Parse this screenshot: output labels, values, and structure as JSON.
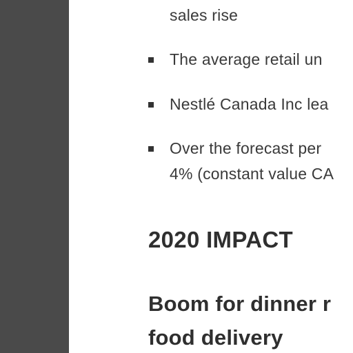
{
  "article": {
    "bullets": [
      {
        "lines": [
          "sales rise"
        ],
        "marker_visible": false
      },
      {
        "lines": [
          "The average retail un"
        ],
        "marker_visible": true
      },
      {
        "lines": [
          "Nestlé Canada Inc lea"
        ],
        "marker_visible": true
      },
      {
        "lines": [
          "Over the forecast per",
          "4% (constant value CA"
        ],
        "marker_visible": true
      }
    ],
    "section_heading": "2020 IMPACT",
    "subheading_lines": [
      "Boom for dinner r",
      "food delivery"
    ]
  }
}
